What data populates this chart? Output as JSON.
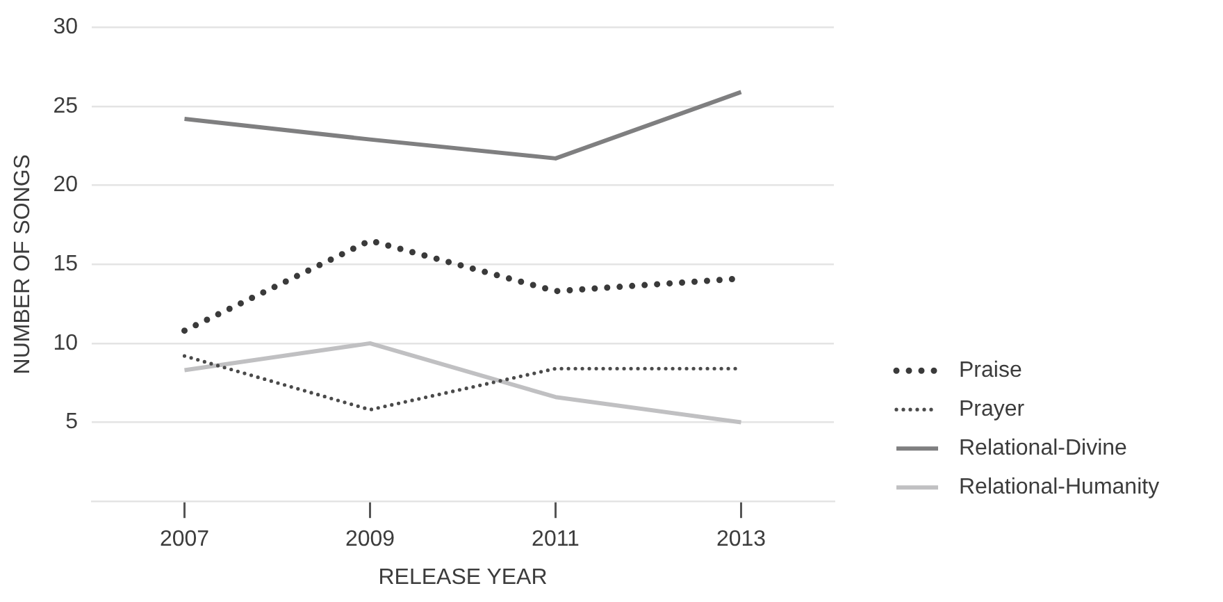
{
  "chart_data": {
    "type": "line",
    "xlabel": "RELEASE YEAR",
    "ylabel": "NUMBER OF SONGS",
    "categories": [
      "2007",
      "2009",
      "2011",
      "2013"
    ],
    "series": [
      {
        "name": "Praise",
        "color": "#3a3a3a",
        "line_style": "dotted",
        "values": [
          10.8,
          16.5,
          13.3,
          14.1
        ]
      },
      {
        "name": "Prayer",
        "color": "#4a4a4a",
        "line_style": "dotted",
        "values": [
          9.2,
          5.8,
          8.4,
          8.4
        ]
      },
      {
        "name": "Relational-Divine",
        "color": "#7f7f80",
        "line_style": "solid",
        "values": [
          24.2,
          22.9,
          21.7,
          25.9
        ]
      },
      {
        "name": "Relational-Humanity",
        "color": "#c0c0c2",
        "line_style": "solid",
        "values": [
          8.3,
          10.0,
          6.6,
          5.0
        ]
      }
    ],
    "ylim": [
      0,
      30
    ],
    "yticks": [
      5,
      10,
      15,
      20,
      25,
      30
    ],
    "grid": "y",
    "legend": "bottom right",
    "marker": "none"
  }
}
